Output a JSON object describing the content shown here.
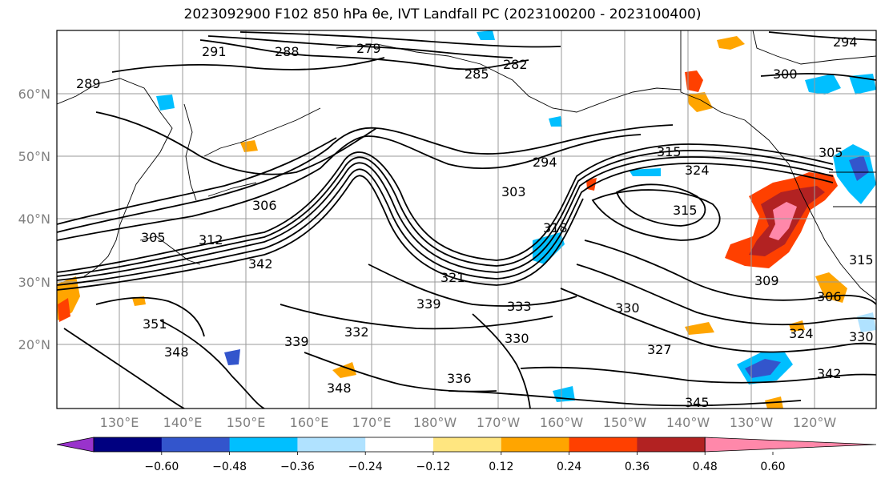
{
  "figure": {
    "title": "2023092900 F102 850 hPa θe, IVT Landfall PC (2023100200 - 2023100400)"
  },
  "map": {
    "lat_labels": [
      "60°N",
      "50°N",
      "40°N",
      "30°N",
      "20°N"
    ],
    "lon_labels": [
      "130°E",
      "140°E",
      "150°E",
      "160°E",
      "170°E",
      "180°W",
      "170°W",
      "160°W",
      "150°W",
      "140°W",
      "130°W",
      "120°W"
    ],
    "contour_labels": [
      "291",
      "288",
      "279",
      "282",
      "285",
      "300",
      "294",
      "289",
      "306",
      "305",
      "312",
      "342",
      "294",
      "303",
      "315",
      "324",
      "318",
      "315",
      "321",
      "339",
      "333",
      "330",
      "327",
      "309",
      "306",
      "351",
      "348",
      "339",
      "332",
      "330",
      "336",
      "348",
      "345",
      "342",
      "324",
      "315",
      "330",
      "305"
    ]
  },
  "colorbar": {
    "ticks": [
      "−0.60",
      "−0.48",
      "−0.36",
      "−0.24",
      "−0.12",
      "0.12",
      "0.24",
      "0.36",
      "0.48",
      "0.60"
    ],
    "colors": [
      "#9933cc",
      "#000080",
      "#3355cc",
      "#00bfff",
      "#b0e2ff",
      "#ffffff",
      "#ffe680",
      "#ffa500",
      "#ff4000",
      "#b22222",
      "#ff88aa"
    ]
  }
}
